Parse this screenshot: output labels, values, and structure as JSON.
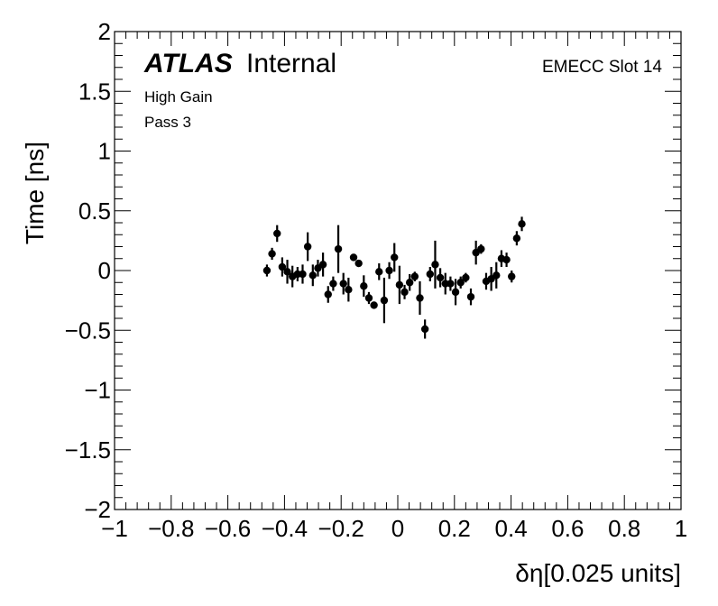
{
  "chart_data": {
    "type": "scatter",
    "xlabel": "δη[0.025 units]",
    "ylabel": "Time [ns]",
    "xlim": [
      -1,
      1
    ],
    "ylim": [
      -2,
      2
    ],
    "x_ticks": [
      "−1",
      "−0.8",
      "−0.6",
      "−0.4",
      "−0.2",
      "0",
      "0.2",
      "0.4",
      "0.6",
      "0.8",
      "1"
    ],
    "y_ticks": [
      "−2",
      "−1.5",
      "−1",
      "−0.5",
      "0",
      "0.5",
      "1",
      "1.5",
      "2"
    ],
    "grid": false,
    "marker_color": "#000000",
    "points": [
      {
        "x": -0.462,
        "y": 0.0,
        "err": 0.05
      },
      {
        "x": -0.444,
        "y": 0.14,
        "err": 0.05
      },
      {
        "x": -0.426,
        "y": 0.31,
        "err": 0.07
      },
      {
        "x": -0.408,
        "y": 0.03,
        "err": 0.08
      },
      {
        "x": -0.39,
        "y": -0.01,
        "err": 0.1
      },
      {
        "x": -0.372,
        "y": -0.05,
        "err": 0.09
      },
      {
        "x": -0.354,
        "y": -0.03,
        "err": 0.06
      },
      {
        "x": -0.336,
        "y": -0.03,
        "err": 0.08
      },
      {
        "x": -0.318,
        "y": 0.2,
        "err": 0.12
      },
      {
        "x": -0.3,
        "y": -0.04,
        "err": 0.09
      },
      {
        "x": -0.282,
        "y": 0.02,
        "err": 0.07
      },
      {
        "x": -0.264,
        "y": 0.05,
        "err": 0.1
      },
      {
        "x": -0.246,
        "y": -0.2,
        "err": 0.07
      },
      {
        "x": -0.228,
        "y": -0.11,
        "err": 0.06
      },
      {
        "x": -0.21,
        "y": 0.18,
        "err": 0.2
      },
      {
        "x": -0.192,
        "y": -0.11,
        "err": 0.09
      },
      {
        "x": -0.174,
        "y": -0.16,
        "err": 0.1
      },
      {
        "x": -0.156,
        "y": 0.11,
        "err": 0.03
      },
      {
        "x": -0.138,
        "y": 0.06,
        "err": 0.03
      },
      {
        "x": -0.12,
        "y": -0.13,
        "err": 0.09
      },
      {
        "x": -0.102,
        "y": -0.23,
        "err": 0.05
      },
      {
        "x": -0.084,
        "y": -0.29,
        "err": 0.03
      },
      {
        "x": -0.066,
        "y": -0.01,
        "err": 0.07
      },
      {
        "x": -0.048,
        "y": -0.25,
        "err": 0.19
      },
      {
        "x": -0.03,
        "y": 0.0,
        "err": 0.07
      },
      {
        "x": -0.012,
        "y": 0.11,
        "err": 0.12
      },
      {
        "x": 0.006,
        "y": -0.12,
        "err": 0.16
      },
      {
        "x": 0.024,
        "y": -0.18,
        "err": 0.06
      },
      {
        "x": 0.042,
        "y": -0.1,
        "err": 0.07
      },
      {
        "x": 0.06,
        "y": -0.05,
        "err": 0.04
      },
      {
        "x": 0.078,
        "y": -0.23,
        "err": 0.14
      },
      {
        "x": 0.096,
        "y": -0.49,
        "err": 0.08
      },
      {
        "x": 0.114,
        "y": -0.03,
        "err": 0.06
      },
      {
        "x": 0.132,
        "y": 0.05,
        "err": 0.2
      },
      {
        "x": 0.15,
        "y": -0.06,
        "err": 0.08
      },
      {
        "x": 0.168,
        "y": -0.11,
        "err": 0.09
      },
      {
        "x": 0.186,
        "y": -0.11,
        "err": 0.06
      },
      {
        "x": 0.204,
        "y": -0.18,
        "err": 0.11
      },
      {
        "x": 0.222,
        "y": -0.1,
        "err": 0.05
      },
      {
        "x": 0.24,
        "y": -0.06,
        "err": 0.04
      },
      {
        "x": 0.258,
        "y": -0.22,
        "err": 0.07
      },
      {
        "x": 0.276,
        "y": 0.15,
        "err": 0.1
      },
      {
        "x": 0.294,
        "y": 0.18,
        "err": 0.04
      },
      {
        "x": 0.312,
        "y": -0.09,
        "err": 0.07
      },
      {
        "x": 0.33,
        "y": -0.07,
        "err": 0.1
      },
      {
        "x": 0.348,
        "y": -0.04,
        "err": 0.11
      },
      {
        "x": 0.366,
        "y": 0.1,
        "err": 0.07
      },
      {
        "x": 0.384,
        "y": 0.09,
        "err": 0.06
      },
      {
        "x": 0.402,
        "y": -0.05,
        "err": 0.05
      },
      {
        "x": 0.42,
        "y": 0.27,
        "err": 0.06
      },
      {
        "x": 0.438,
        "y": 0.39,
        "err": 0.06
      }
    ]
  },
  "labels": {
    "atlas": "ATLAS",
    "internal": "Internal",
    "gain": "High Gain",
    "pass": "Pass 3",
    "slot": "EMECC Slot 14"
  }
}
